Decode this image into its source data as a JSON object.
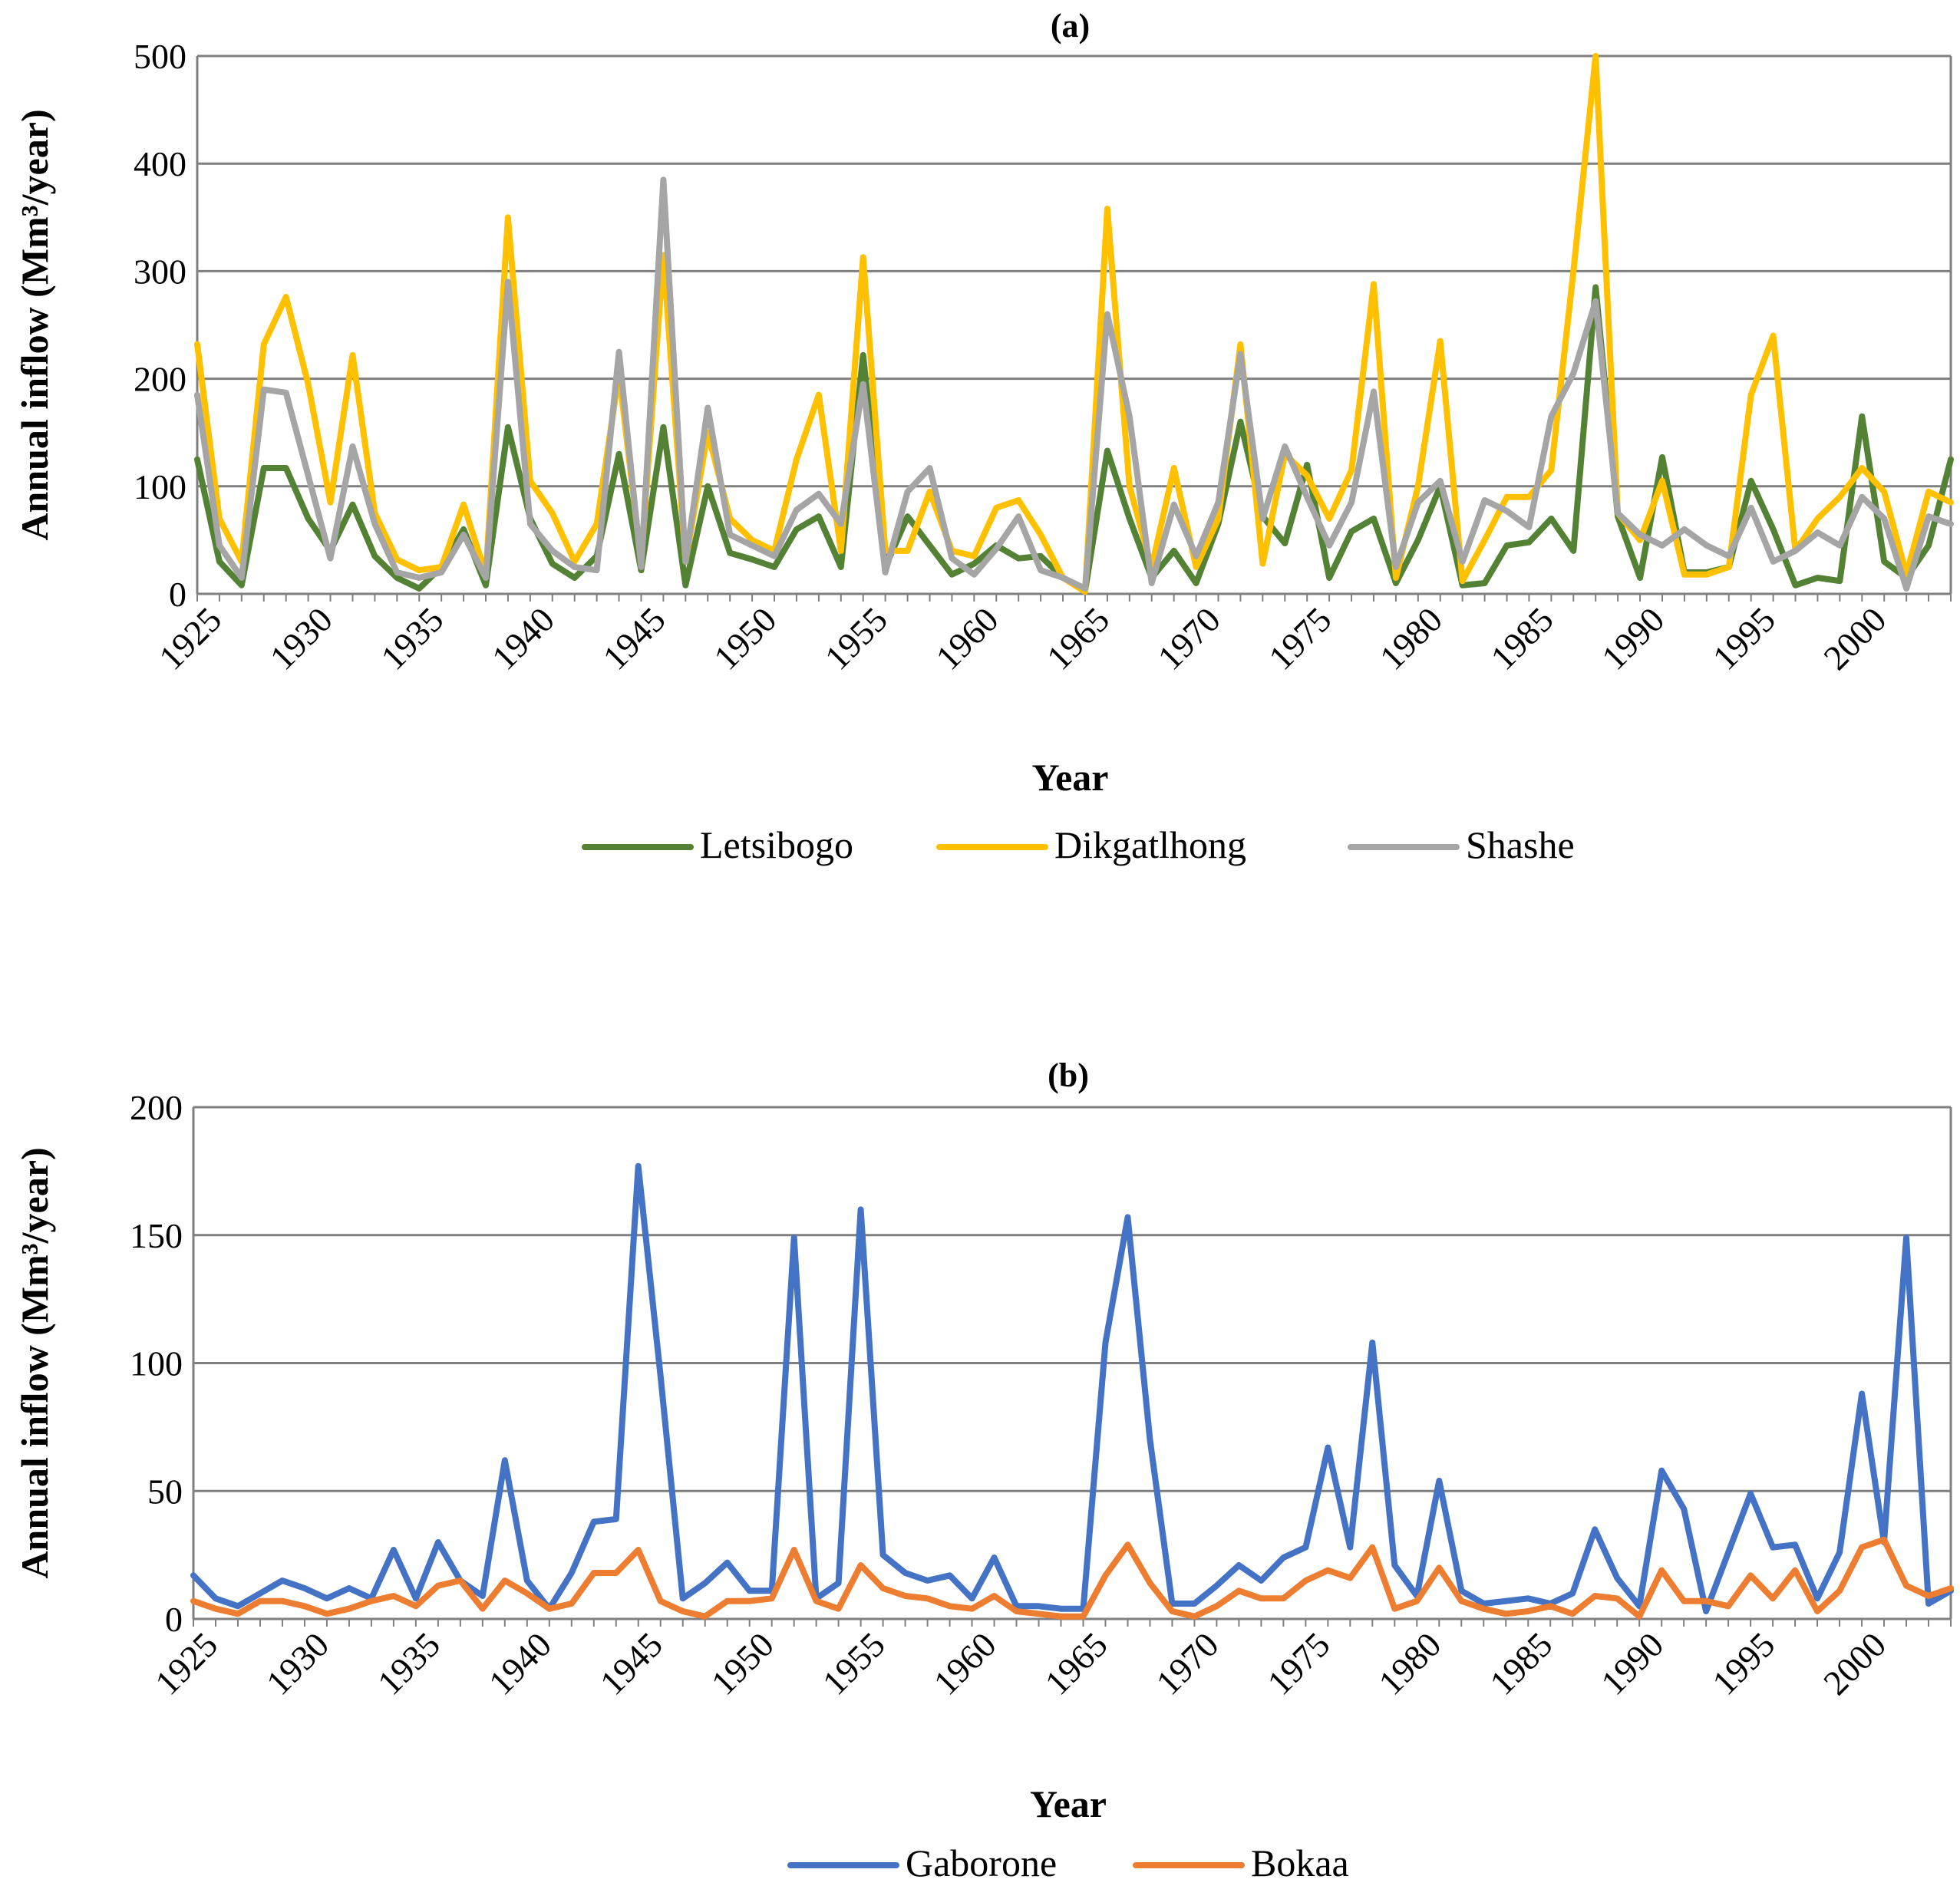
{
  "chart_data": [
    {
      "type": "line",
      "title": "(a)",
      "xlabel": "Year",
      "ylabel": "Annual inflow (Mm³/year)",
      "ylim": [
        0,
        500
      ],
      "yticks": [
        0,
        100,
        200,
        300,
        400,
        500
      ],
      "xtick_labels": [
        "1925",
        "1930",
        "1935",
        "1940",
        "1945",
        "1950",
        "1955",
        "1960",
        "1965",
        "1970",
        "1975",
        "1980",
        "1985",
        "1990",
        "1995",
        "2000"
      ],
      "x_start": 1925,
      "legend_position": "bottom",
      "grid": true,
      "series": [
        {
          "name": "Letsibogo",
          "color": "#548235",
          "values": [
            125,
            30,
            8,
            117,
            117,
            70,
            40,
            83,
            35,
            15,
            5,
            25,
            60,
            8,
            155,
            70,
            28,
            15,
            35,
            130,
            22,
            155,
            8,
            100,
            38,
            32,
            25,
            60,
            72,
            25,
            222,
            25,
            72,
            45,
            18,
            28,
            45,
            33,
            35,
            15,
            3,
            133,
            70,
            15,
            40,
            10,
            65,
            160,
            72,
            47,
            120,
            15,
            58,
            70,
            10,
            50,
            100,
            8,
            10,
            45,
            48,
            70,
            40,
            285,
            72,
            15,
            127,
            20,
            20,
            25,
            105,
            60,
            8,
            15,
            12,
            165,
            30,
            15,
            45,
            125
          ]
        },
        {
          "name": "Dikgatlhong",
          "color": "#FFC000",
          "values": [
            232,
            70,
            30,
            232,
            276,
            195,
            85,
            222,
            75,
            32,
            22,
            25,
            83,
            18,
            350,
            105,
            75,
            30,
            65,
            205,
            30,
            315,
            30,
            150,
            70,
            50,
            40,
            125,
            185,
            40,
            313,
            40,
            40,
            95,
            40,
            35,
            80,
            87,
            55,
            15,
            2,
            358,
            100,
            25,
            117,
            25,
            70,
            232,
            28,
            130,
            110,
            70,
            115,
            288,
            15,
            100,
            235,
            12,
            50,
            90,
            90,
            115,
            300,
            500,
            75,
            50,
            105,
            18,
            18,
            25,
            185,
            240,
            40,
            70,
            90,
            117,
            95,
            18,
            95,
            85
          ]
        },
        {
          "name": "Shashe",
          "color": "#A5A5A5",
          "values": [
            185,
            45,
            15,
            190,
            187,
            110,
            33,
            137,
            65,
            20,
            15,
            20,
            55,
            15,
            290,
            65,
            40,
            25,
            22,
            225,
            25,
            385,
            30,
            173,
            55,
            45,
            35,
            78,
            93,
            65,
            195,
            20,
            95,
            117,
            33,
            18,
            42,
            72,
            22,
            15,
            5,
            260,
            165,
            10,
            83,
            35,
            85,
            223,
            70,
            137,
            90,
            45,
            85,
            188,
            25,
            85,
            105,
            30,
            87,
            77,
            62,
            165,
            205,
            272,
            75,
            55,
            45,
            60,
            45,
            35,
            80,
            30,
            40,
            57,
            45,
            90,
            70,
            5,
            72,
            65
          ]
        }
      ]
    },
    {
      "type": "line",
      "title": "(b)",
      "xlabel": "Year",
      "ylabel": "Annual inflow (Mm³/year)",
      "ylim": [
        0,
        200
      ],
      "yticks": [
        0,
        50,
        100,
        150,
        200
      ],
      "xtick_labels": [
        "1925",
        "1930",
        "1935",
        "1940",
        "1945",
        "1950",
        "1955",
        "1960",
        "1965",
        "1970",
        "1975",
        "1980",
        "1985",
        "1990",
        "1995",
        "2000"
      ],
      "x_start": 1925,
      "legend_position": "bottom",
      "grid": true,
      "series": [
        {
          "name": "Gaborone",
          "color": "#4472C4",
          "values": [
            17,
            8,
            5,
            10,
            15,
            12,
            8,
            12,
            8,
            27,
            8,
            30,
            15,
            9,
            62,
            15,
            4,
            18,
            38,
            39,
            177,
            95,
            8,
            14,
            22,
            11,
            11,
            149,
            8,
            14,
            160,
            25,
            18,
            15,
            17,
            8,
            24,
            5,
            5,
            4,
            4,
            108,
            157,
            70,
            6,
            6,
            13,
            21,
            15,
            24,
            28,
            67,
            28,
            108,
            21,
            9,
            54,
            11,
            6,
            7,
            8,
            6,
            10,
            35,
            16,
            5,
            58,
            43,
            3,
            26,
            49,
            28,
            29,
            8,
            26,
            88,
            30,
            149,
            6,
            11
          ]
        },
        {
          "name": "Bokaa",
          "color": "#ED7D31",
          "values": [
            7,
            4,
            2,
            7,
            7,
            5,
            2,
            4,
            7,
            9,
            5,
            13,
            15,
            4,
            15,
            10,
            4,
            6,
            18,
            18,
            27,
            7,
            3,
            1,
            7,
            7,
            8,
            27,
            7,
            4,
            21,
            12,
            9,
            8,
            5,
            4,
            9,
            3,
            2,
            1,
            1,
            17,
            29,
            14,
            3,
            1,
            5,
            11,
            8,
            8,
            15,
            19,
            16,
            28,
            4,
            7,
            20,
            7,
            4,
            2,
            3,
            5,
            2,
            9,
            8,
            1,
            19,
            7,
            7,
            5,
            17,
            8,
            19,
            3,
            11,
            28,
            31,
            13,
            9,
            12
          ]
        }
      ]
    }
  ]
}
